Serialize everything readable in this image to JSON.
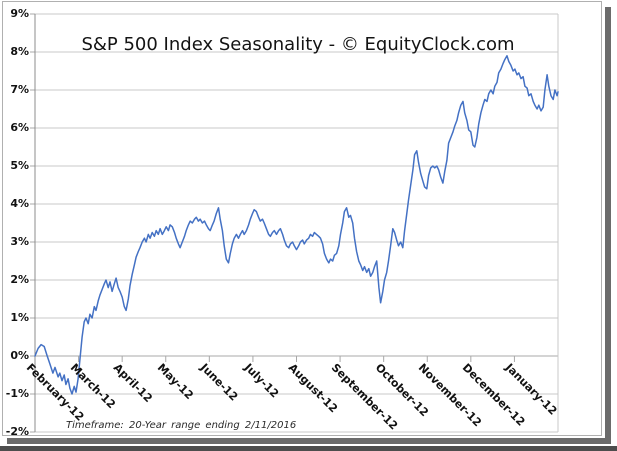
{
  "chart_image": {
    "title": "S&P 500 Index Seasonality - © EquityClock.com",
    "footnote": "Timeframe: 20-Year range ending 2/11/2016"
  },
  "chart_data": {
    "type": "line",
    "title": "S&P 500 Index Seasonality - © EquityClock.com",
    "subtitle": "Timeframe: 20-Year range ending 2/11/2016",
    "xlabel": "",
    "ylabel": "",
    "x_categories": [
      "February-12",
      "March-12",
      "April-12",
      "May-12",
      "June-12",
      "July-12",
      "August-12",
      "September-12",
      "October-12",
      "November-12",
      "December-12",
      "January-12"
    ],
    "y_tick_labels": [
      "9%",
      "8%",
      "7%",
      "6%",
      "5%",
      "4%",
      "3%",
      "2%",
      "1%",
      "0%",
      "-1%",
      "-2%"
    ],
    "ylim": [
      -2,
      9
    ],
    "y_unit": "% cumulative gain",
    "grid": true,
    "legend": "none",
    "line_color": "#4471C4",
    "gridline_color": "#c9c9c9",
    "axis_color": "#8c8c8c",
    "series": [
      {
        "name": "S&P 500 Index Seasonality",
        "x_unit": "month position (0 = start of February, 12 = end of January)",
        "points": [
          [
            0,
            0.0
          ],
          [
            0.07,
            0.2
          ],
          [
            0.14,
            0.3
          ],
          [
            0.21,
            0.25
          ],
          [
            0.28,
            0.0
          ],
          [
            0.34,
            -0.2
          ],
          [
            0.41,
            -0.45
          ],
          [
            0.46,
            -0.3
          ],
          [
            0.53,
            -0.55
          ],
          [
            0.57,
            -0.45
          ],
          [
            0.62,
            -0.65
          ],
          [
            0.67,
            -0.5
          ],
          [
            0.71,
            -0.75
          ],
          [
            0.76,
            -0.6
          ],
          [
            0.8,
            -0.85
          ],
          [
            0.85,
            -1.0
          ],
          [
            0.9,
            -0.8
          ],
          [
            0.94,
            -0.95
          ],
          [
            0.99,
            -0.6
          ],
          [
            1.03,
            -0.1
          ],
          [
            1.08,
            0.5
          ],
          [
            1.13,
            0.9
          ],
          [
            1.17,
            1.0
          ],
          [
            1.22,
            0.85
          ],
          [
            1.26,
            1.1
          ],
          [
            1.31,
            1.0
          ],
          [
            1.36,
            1.3
          ],
          [
            1.4,
            1.2
          ],
          [
            1.45,
            1.45
          ],
          [
            1.49,
            1.6
          ],
          [
            1.54,
            1.75
          ],
          [
            1.59,
            1.9
          ],
          [
            1.63,
            2.0
          ],
          [
            1.68,
            1.8
          ],
          [
            1.72,
            1.95
          ],
          [
            1.77,
            1.7
          ],
          [
            1.82,
            1.9
          ],
          [
            1.86,
            2.05
          ],
          [
            1.91,
            1.8
          ],
          [
            1.95,
            1.7
          ],
          [
            2.0,
            1.55
          ],
          [
            2.05,
            1.3
          ],
          [
            2.09,
            1.2
          ],
          [
            2.14,
            1.5
          ],
          [
            2.18,
            1.85
          ],
          [
            2.23,
            2.15
          ],
          [
            2.28,
            2.4
          ],
          [
            2.32,
            2.6
          ],
          [
            2.37,
            2.75
          ],
          [
            2.41,
            2.85
          ],
          [
            2.46,
            3.0
          ],
          [
            2.51,
            3.1
          ],
          [
            2.55,
            3.0
          ],
          [
            2.6,
            3.2
          ],
          [
            2.64,
            3.1
          ],
          [
            2.69,
            3.25
          ],
          [
            2.74,
            3.15
          ],
          [
            2.78,
            3.3
          ],
          [
            2.83,
            3.2
          ],
          [
            2.87,
            3.35
          ],
          [
            2.92,
            3.2
          ],
          [
            2.97,
            3.3
          ],
          [
            3.01,
            3.4
          ],
          [
            3.06,
            3.3
          ],
          [
            3.1,
            3.45
          ],
          [
            3.15,
            3.4
          ],
          [
            3.2,
            3.25
          ],
          [
            3.24,
            3.1
          ],
          [
            3.29,
            2.95
          ],
          [
            3.33,
            2.85
          ],
          [
            3.38,
            3.0
          ],
          [
            3.43,
            3.15
          ],
          [
            3.47,
            3.3
          ],
          [
            3.52,
            3.45
          ],
          [
            3.56,
            3.55
          ],
          [
            3.61,
            3.5
          ],
          [
            3.66,
            3.6
          ],
          [
            3.7,
            3.65
          ],
          [
            3.75,
            3.55
          ],
          [
            3.79,
            3.6
          ],
          [
            3.84,
            3.5
          ],
          [
            3.89,
            3.55
          ],
          [
            3.93,
            3.45
          ],
          [
            3.98,
            3.35
          ],
          [
            4.02,
            3.3
          ],
          [
            4.07,
            3.45
          ],
          [
            4.11,
            3.55
          ],
          [
            4.16,
            3.75
          ],
          [
            4.21,
            3.9
          ],
          [
            4.25,
            3.6
          ],
          [
            4.3,
            3.3
          ],
          [
            4.34,
            2.9
          ],
          [
            4.39,
            2.55
          ],
          [
            4.44,
            2.45
          ],
          [
            4.48,
            2.7
          ],
          [
            4.53,
            2.95
          ],
          [
            4.57,
            3.1
          ],
          [
            4.62,
            3.2
          ],
          [
            4.67,
            3.1
          ],
          [
            4.71,
            3.2
          ],
          [
            4.76,
            3.3
          ],
          [
            4.8,
            3.2
          ],
          [
            4.85,
            3.3
          ],
          [
            4.9,
            3.45
          ],
          [
            4.94,
            3.6
          ],
          [
            4.99,
            3.75
          ],
          [
            5.03,
            3.85
          ],
          [
            5.08,
            3.8
          ],
          [
            5.13,
            3.65
          ],
          [
            5.17,
            3.55
          ],
          [
            5.22,
            3.6
          ],
          [
            5.26,
            3.5
          ],
          [
            5.31,
            3.35
          ],
          [
            5.36,
            3.2
          ],
          [
            5.4,
            3.15
          ],
          [
            5.45,
            3.25
          ],
          [
            5.49,
            3.3
          ],
          [
            5.54,
            3.2
          ],
          [
            5.59,
            3.3
          ],
          [
            5.63,
            3.35
          ],
          [
            5.68,
            3.2
          ],
          [
            5.72,
            3.05
          ],
          [
            5.77,
            2.9
          ],
          [
            5.82,
            2.85
          ],
          [
            5.86,
            2.95
          ],
          [
            5.91,
            3.0
          ],
          [
            5.95,
            2.9
          ],
          [
            6.0,
            2.8
          ],
          [
            6.05,
            2.9
          ],
          [
            6.09,
            3.0
          ],
          [
            6.14,
            3.05
          ],
          [
            6.18,
            2.95
          ],
          [
            6.23,
            3.05
          ],
          [
            6.28,
            3.1
          ],
          [
            6.32,
            3.2
          ],
          [
            6.37,
            3.15
          ],
          [
            6.41,
            3.25
          ],
          [
            6.46,
            3.2
          ],
          [
            6.51,
            3.15
          ],
          [
            6.55,
            3.1
          ],
          [
            6.6,
            2.95
          ],
          [
            6.64,
            2.7
          ],
          [
            6.69,
            2.55
          ],
          [
            6.74,
            2.45
          ],
          [
            6.78,
            2.55
          ],
          [
            6.83,
            2.5
          ],
          [
            6.87,
            2.65
          ],
          [
            6.92,
            2.7
          ],
          [
            6.97,
            2.9
          ],
          [
            7.01,
            3.2
          ],
          [
            7.06,
            3.5
          ],
          [
            7.1,
            3.8
          ],
          [
            7.15,
            3.9
          ],
          [
            7.2,
            3.65
          ],
          [
            7.24,
            3.7
          ],
          [
            7.29,
            3.5
          ],
          [
            7.33,
            3.1
          ],
          [
            7.38,
            2.75
          ],
          [
            7.43,
            2.5
          ],
          [
            7.47,
            2.4
          ],
          [
            7.52,
            2.25
          ],
          [
            7.56,
            2.35
          ],
          [
            7.61,
            2.2
          ],
          [
            7.66,
            2.3
          ],
          [
            7.7,
            2.1
          ],
          [
            7.75,
            2.2
          ],
          [
            7.79,
            2.35
          ],
          [
            7.84,
            2.5
          ],
          [
            7.89,
            1.8
          ],
          [
            7.93,
            1.4
          ],
          [
            7.98,
            1.7
          ],
          [
            8.02,
            2.0
          ],
          [
            8.07,
            2.2
          ],
          [
            8.11,
            2.5
          ],
          [
            8.16,
            2.9
          ],
          [
            8.21,
            3.35
          ],
          [
            8.25,
            3.25
          ],
          [
            8.3,
            3.05
          ],
          [
            8.34,
            2.9
          ],
          [
            8.39,
            3.0
          ],
          [
            8.44,
            2.85
          ],
          [
            8.48,
            3.3
          ],
          [
            8.53,
            3.75
          ],
          [
            8.57,
            4.1
          ],
          [
            8.62,
            4.5
          ],
          [
            8.67,
            4.9
          ],
          [
            8.71,
            5.3
          ],
          [
            8.76,
            5.4
          ],
          [
            8.8,
            5.1
          ],
          [
            8.85,
            4.8
          ],
          [
            8.9,
            4.6
          ],
          [
            8.94,
            4.45
          ],
          [
            8.99,
            4.4
          ],
          [
            9.03,
            4.75
          ],
          [
            9.08,
            4.95
          ],
          [
            9.13,
            5.0
          ],
          [
            9.17,
            4.95
          ],
          [
            9.22,
            5.0
          ],
          [
            9.26,
            4.9
          ],
          [
            9.31,
            4.7
          ],
          [
            9.36,
            4.55
          ],
          [
            9.4,
            4.85
          ],
          [
            9.45,
            5.15
          ],
          [
            9.49,
            5.6
          ],
          [
            9.54,
            5.75
          ],
          [
            9.59,
            5.9
          ],
          [
            9.63,
            6.05
          ],
          [
            9.68,
            6.2
          ],
          [
            9.72,
            6.4
          ],
          [
            9.77,
            6.6
          ],
          [
            9.82,
            6.7
          ],
          [
            9.86,
            6.4
          ],
          [
            9.91,
            6.2
          ],
          [
            9.95,
            5.95
          ],
          [
            10.0,
            5.9
          ],
          [
            10.05,
            5.55
          ],
          [
            10.09,
            5.5
          ],
          [
            10.14,
            5.75
          ],
          [
            10.18,
            6.1
          ],
          [
            10.23,
            6.4
          ],
          [
            10.28,
            6.6
          ],
          [
            10.32,
            6.75
          ],
          [
            10.37,
            6.7
          ],
          [
            10.41,
            6.9
          ],
          [
            10.46,
            7.0
          ],
          [
            10.51,
            6.9
          ],
          [
            10.55,
            7.1
          ],
          [
            10.6,
            7.2
          ],
          [
            10.64,
            7.45
          ],
          [
            10.69,
            7.55
          ],
          [
            10.74,
            7.7
          ],
          [
            10.78,
            7.8
          ],
          [
            10.83,
            7.9
          ],
          [
            10.87,
            7.75
          ],
          [
            10.92,
            7.65
          ],
          [
            10.97,
            7.5
          ],
          [
            11.01,
            7.55
          ],
          [
            11.06,
            7.4
          ],
          [
            11.1,
            7.45
          ],
          [
            11.15,
            7.3
          ],
          [
            11.2,
            7.35
          ],
          [
            11.24,
            7.1
          ],
          [
            11.29,
            7.05
          ],
          [
            11.33,
            6.85
          ],
          [
            11.38,
            6.9
          ],
          [
            11.43,
            6.7
          ],
          [
            11.47,
            6.6
          ],
          [
            11.52,
            6.5
          ],
          [
            11.56,
            6.6
          ],
          [
            11.61,
            6.45
          ],
          [
            11.66,
            6.55
          ],
          [
            11.7,
            7.0
          ],
          [
            11.75,
            7.4
          ],
          [
            11.79,
            7.1
          ],
          [
            11.84,
            6.85
          ],
          [
            11.89,
            6.75
          ],
          [
            11.93,
            7.0
          ],
          [
            11.98,
            6.85
          ],
          [
            12.0,
            6.95
          ]
        ]
      }
    ]
  }
}
